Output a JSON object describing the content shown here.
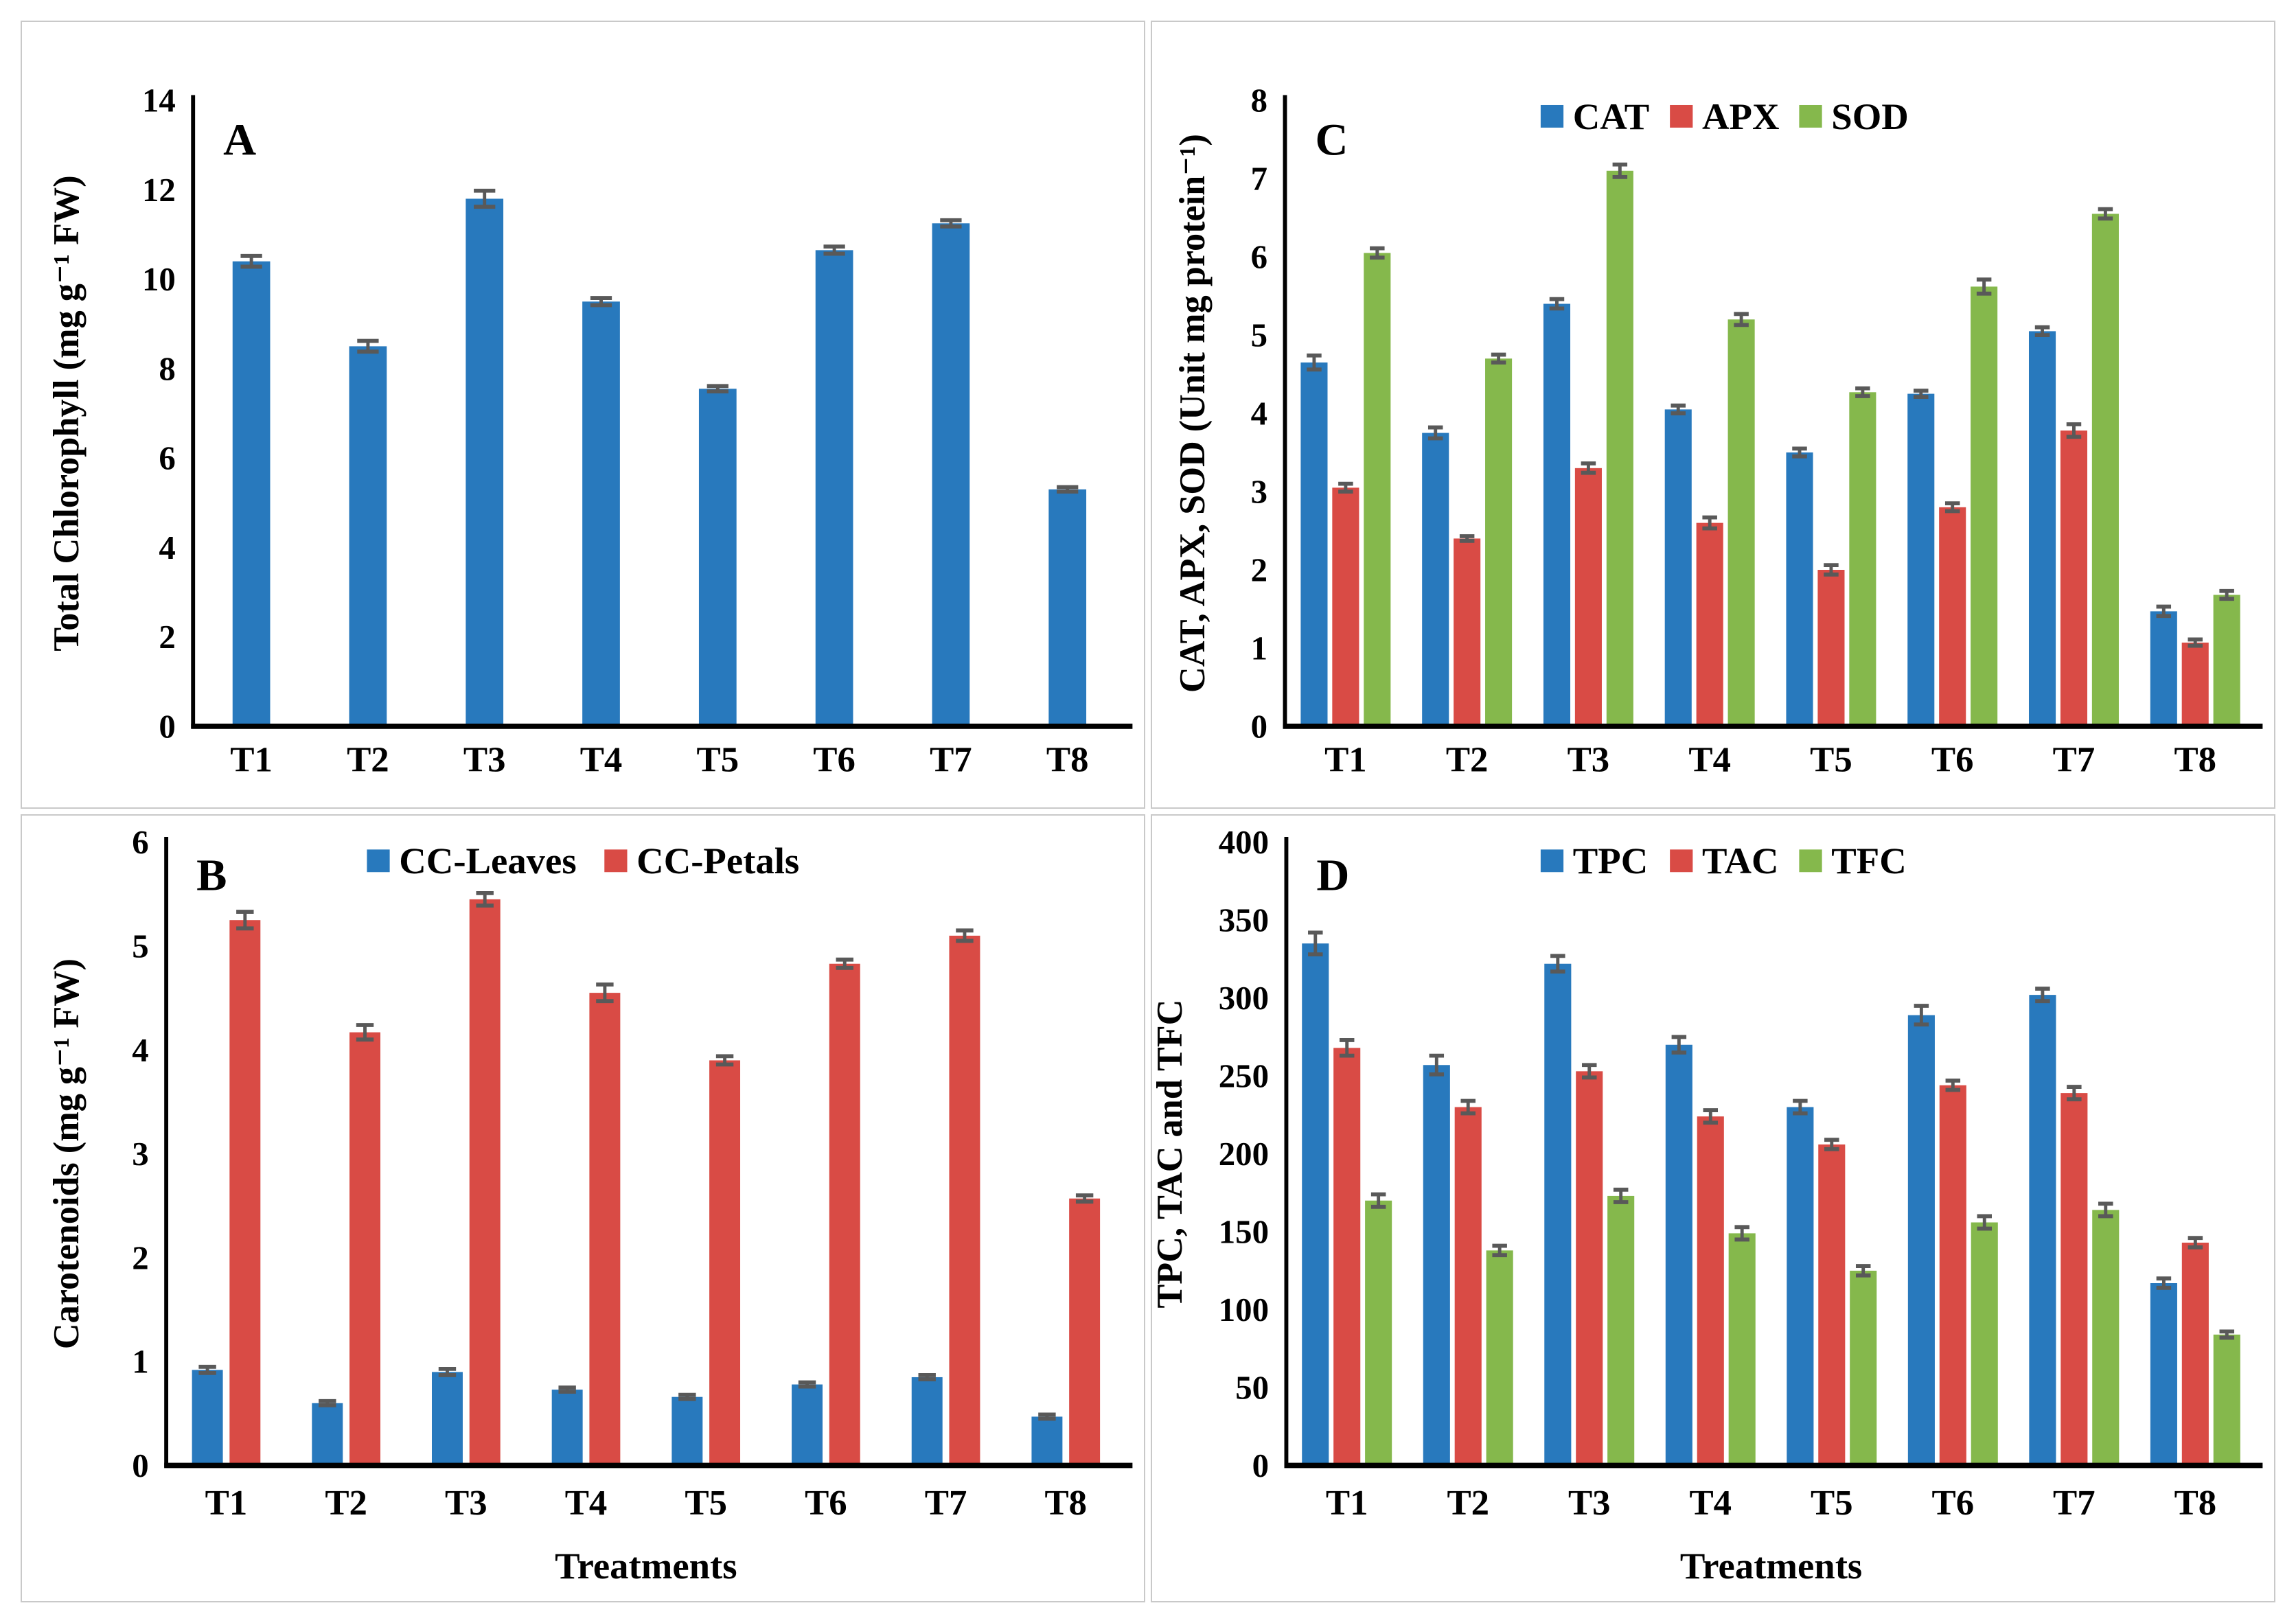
{
  "figure_title": "",
  "colors": {
    "blue": "#2879BD",
    "red": "#D94B45",
    "green": "#85B84C",
    "error_bar": "#595959",
    "axis": "#000000",
    "panel_border": "#c9c9c9"
  },
  "chart_data": [
    {
      "panel": "A",
      "type": "bar",
      "letter": "A",
      "title": "",
      "xlabel": "",
      "ylabel": "Total Chlorophyll (mg g⁻¹ FW)",
      "ylim": [
        0,
        14
      ],
      "ystep": 2,
      "grid": false,
      "legend_position": "none",
      "categories": [
        "T1",
        "T2",
        "T3",
        "T4",
        "T5",
        "T6",
        "T7",
        "T8"
      ],
      "series": [
        {
          "name": "Total Chlorophyll",
          "color_key": "blue",
          "values": [
            10.4,
            8.5,
            11.8,
            9.5,
            7.55,
            10.65,
            11.25,
            5.3
          ],
          "errors": [
            0.12,
            0.12,
            0.18,
            0.08,
            0.06,
            0.08,
            0.07,
            0.05
          ]
        }
      ]
    },
    {
      "panel": "B",
      "type": "bar",
      "letter": "B",
      "title": "",
      "xlabel": "Treatments",
      "ylabel": "Carotenoids (mg g⁻¹ FW)",
      "ylim": [
        0,
        6
      ],
      "ystep": 1,
      "grid": false,
      "legend_position": "top",
      "categories": [
        "T1",
        "T2",
        "T3",
        "T4",
        "T5",
        "T6",
        "T7",
        "T8"
      ],
      "series": [
        {
          "name": "CC-Leaves",
          "color_key": "blue",
          "values": [
            0.92,
            0.6,
            0.9,
            0.73,
            0.66,
            0.78,
            0.85,
            0.47
          ],
          "errors": [
            0.03,
            0.02,
            0.03,
            0.02,
            0.02,
            0.02,
            0.02,
            0.02
          ]
        },
        {
          "name": "CC-Petals",
          "color_key": "red",
          "values": [
            5.25,
            4.17,
            5.45,
            4.55,
            3.9,
            4.83,
            5.1,
            2.57
          ],
          "errors": [
            0.08,
            0.07,
            0.06,
            0.08,
            0.04,
            0.04,
            0.05,
            0.03
          ]
        }
      ]
    },
    {
      "panel": "C",
      "type": "bar",
      "letter": "C",
      "title": "",
      "xlabel": "",
      "ylabel": "CAT, APX, SOD (Unit mg protein⁻¹)",
      "ylim": [
        0,
        8
      ],
      "ystep": 1,
      "grid": false,
      "legend_position": "top",
      "categories": [
        "T1",
        "T2",
        "T3",
        "T4",
        "T5",
        "T6",
        "T7",
        "T8"
      ],
      "series": [
        {
          "name": "CAT",
          "color_key": "blue",
          "values": [
            4.65,
            3.75,
            5.4,
            4.05,
            3.5,
            4.25,
            5.05,
            1.47
          ],
          "errors": [
            0.09,
            0.07,
            0.06,
            0.05,
            0.05,
            0.04,
            0.05,
            0.06
          ]
        },
        {
          "name": "APX",
          "color_key": "red",
          "values": [
            3.05,
            2.4,
            3.3,
            2.6,
            2.0,
            2.8,
            3.78,
            1.07
          ],
          "errors": [
            0.05,
            0.03,
            0.06,
            0.07,
            0.06,
            0.05,
            0.08,
            0.04
          ]
        },
        {
          "name": "SOD",
          "color_key": "green",
          "values": [
            6.05,
            4.7,
            7.1,
            5.2,
            4.27,
            5.62,
            6.55,
            1.68
          ],
          "errors": [
            0.06,
            0.05,
            0.08,
            0.07,
            0.05,
            0.09,
            0.06,
            0.05
          ]
        }
      ]
    },
    {
      "panel": "D",
      "type": "bar",
      "letter": "D",
      "title": "",
      "xlabel": "Treatments",
      "ylabel": "TPC, TAC and TFC",
      "ylim": [
        0,
        400
      ],
      "ystep": 50,
      "grid": false,
      "legend_position": "top",
      "categories": [
        "T1",
        "T2",
        "T3",
        "T4",
        "T5",
        "T6",
        "T7",
        "T8"
      ],
      "series": [
        {
          "name": "TPC",
          "color_key": "blue",
          "values": [
            335,
            257,
            322,
            270,
            230,
            289,
            302,
            117
          ],
          "errors": [
            7,
            6,
            5,
            5,
            4,
            6,
            4,
            3
          ]
        },
        {
          "name": "TAC",
          "color_key": "red",
          "values": [
            268,
            230,
            253,
            224,
            206,
            244,
            239,
            143
          ],
          "errors": [
            5,
            4,
            4,
            4,
            3,
            3,
            4,
            3
          ]
        },
        {
          "name": "TFC",
          "color_key": "green",
          "values": [
            170,
            138,
            173,
            149,
            125,
            156,
            164,
            84
          ],
          "errors": [
            4,
            3,
            4,
            4,
            3,
            4,
            4,
            2
          ]
        }
      ]
    }
  ]
}
